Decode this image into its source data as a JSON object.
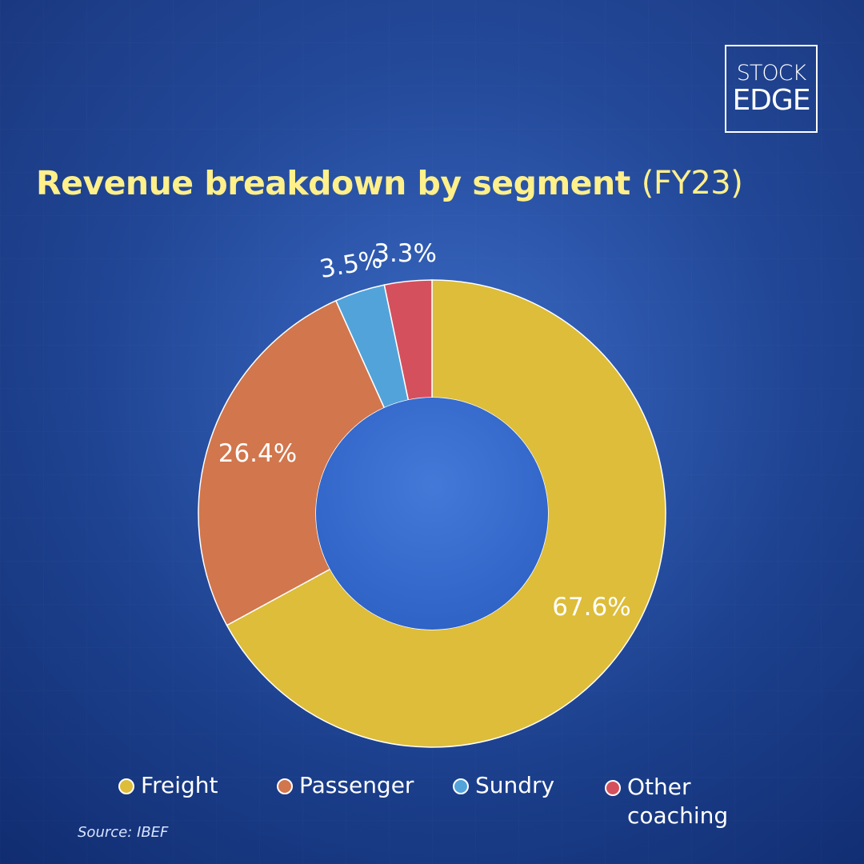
{
  "brand": {
    "line1": "STOCK",
    "line2": "EDGE"
  },
  "title": {
    "main": "Revenue breakdown by segment",
    "period": "(FY23)"
  },
  "legend": [
    {
      "label": "Freight",
      "color": "#ddbd3a"
    },
    {
      "label": "Passenger",
      "color": "#d1764d"
    },
    {
      "label": "Sundry",
      "color": "#52a3da"
    },
    {
      "label": "Other\ncoaching",
      "color": "#d5505d"
    }
  ],
  "source": "Source: IBEF",
  "chart_data": {
    "type": "pie",
    "chart_style": "donut",
    "title": "Revenue breakdown by segment",
    "subtitle": "(FY23)",
    "categories": [
      "Freight",
      "Passenger",
      "Sundry",
      "Other coaching"
    ],
    "values": [
      67.6,
      26.4,
      3.5,
      3.3
    ],
    "data_labels": [
      "67.6%",
      "26.4%",
      "3.5%",
      "3.3%"
    ],
    "colors": [
      "#ddbd3a",
      "#d1764d",
      "#52a3da",
      "#d5505d"
    ],
    "legend_position": "bottom",
    "grid": false
  }
}
